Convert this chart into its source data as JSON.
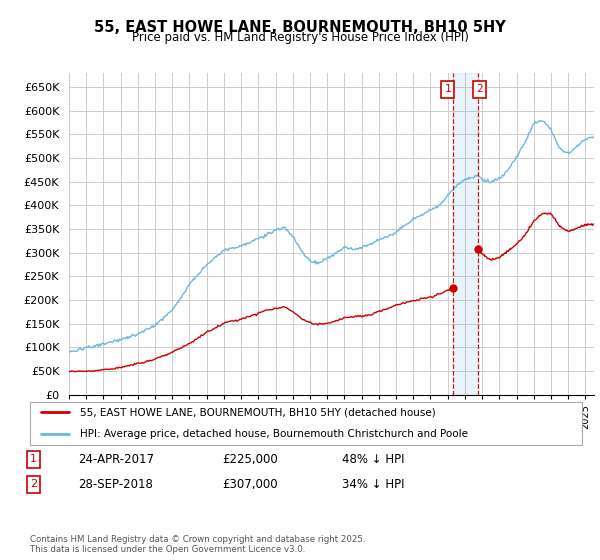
{
  "title": "55, EAST HOWE LANE, BOURNEMOUTH, BH10 5HY",
  "subtitle": "Price paid vs. HM Land Registry's House Price Index (HPI)",
  "ylabel_ticks": [
    "£0",
    "£50K",
    "£100K",
    "£150K",
    "£200K",
    "£250K",
    "£300K",
    "£350K",
    "£400K",
    "£450K",
    "£500K",
    "£550K",
    "£600K",
    "£650K"
  ],
  "ytick_vals": [
    0,
    50000,
    100000,
    150000,
    200000,
    250000,
    300000,
    350000,
    400000,
    450000,
    500000,
    550000,
    600000,
    650000
  ],
  "ylim": [
    0,
    680000
  ],
  "xlim_min": 1995,
  "xlim_max": 2025.5,
  "hpi_color": "#6eb6e0",
  "price_color": "#cc0000",
  "grid_color": "#cccccc",
  "background_color": "#ffffff",
  "shade_color": "#ddeeff",
  "legend_label_price": "55, EAST HOWE LANE, BOURNEMOUTH, BH10 5HY (detached house)",
  "legend_label_hpi": "HPI: Average price, detached house, Bournemouth Christchurch and Poole",
  "transaction1_date": "24-APR-2017",
  "transaction1_price": "£225,000",
  "transaction1_detail": "48% ↓ HPI",
  "transaction2_date": "28-SEP-2018",
  "transaction2_price": "£307,000",
  "transaction2_detail": "34% ↓ HPI",
  "footnote": "Contains HM Land Registry data © Crown copyright and database right 2025.\nThis data is licensed under the Open Government Licence v3.0.",
  "marker1_x": 2017.3,
  "marker1_y": 225000,
  "marker2_x": 2018.75,
  "marker2_y": 307000,
  "vline1_x": 2017.3,
  "vline2_x": 2018.75
}
